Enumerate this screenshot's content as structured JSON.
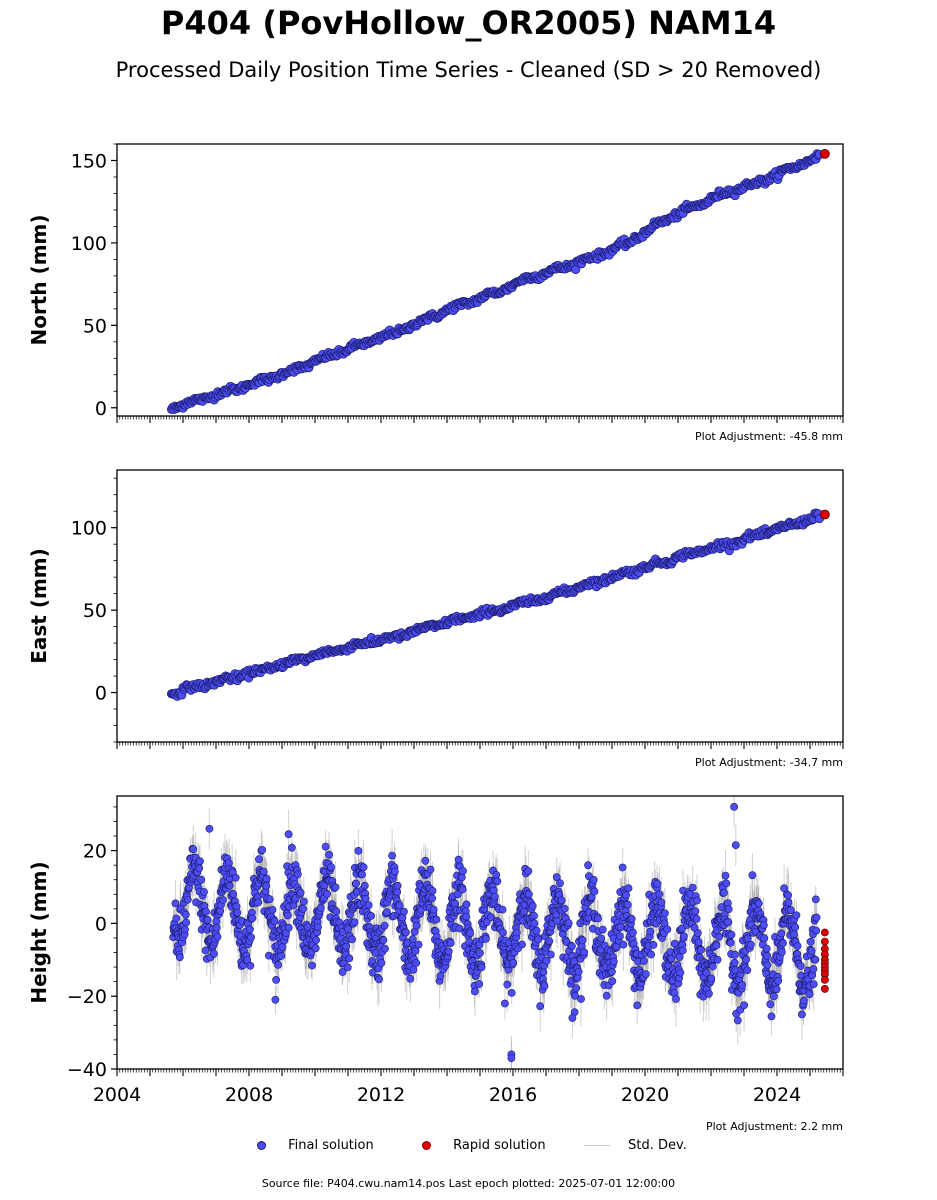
{
  "title": "P404 (PovHollow_OR2005) NAM14",
  "subtitle": "Processed Daily Position Time Series - Cleaned (SD > 20 Removed)",
  "footer": "Source file: P404.cwu.nam14.pos  Last epoch plotted: 2025-07-01 12:00:00",
  "legend": {
    "final": "Final solution",
    "rapid": "Rapid solution",
    "sd": "Std. Dev."
  },
  "colors": {
    "final": "#4d4df5",
    "final_edge": "#1a1a66",
    "rapid": "#e00000",
    "sd": "#c8c8c8"
  },
  "chart_data": [
    {
      "type": "scatter",
      "ylabel": "North (mm)",
      "xlim": [
        2004,
        2026
      ],
      "ylim": [
        -5,
        160
      ],
      "yticks": [
        0,
        50,
        100,
        150
      ],
      "adjustment": "Plot Adjustment: -45.8 mm",
      "series": [
        {
          "name": "Final solution",
          "x": [
            2005.7,
            2006.5,
            2007.5,
            2008.5,
            2009.5,
            2010.5,
            2011.5,
            2012.5,
            2013.5,
            2014.5,
            2015.5,
            2016.5,
            2017.5,
            2018.5,
            2019.5,
            2020.5,
            2021.5,
            2022.5,
            2023.5,
            2024.5,
            2025.2
          ],
          "y": [
            0,
            5,
            11,
            17,
            24,
            32,
            39,
            46,
            55,
            63,
            70,
            79,
            85,
            92,
            100,
            113,
            122,
            131,
            137,
            146,
            152
          ]
        },
        {
          "name": "Rapid solution",
          "x": [
            2025.45
          ],
          "y": [
            154
          ]
        }
      ]
    },
    {
      "type": "scatter",
      "ylabel": "East (mm)",
      "xlim": [
        2004,
        2026
      ],
      "ylim": [
        -30,
        135
      ],
      "yticks": [
        0,
        50,
        100
      ],
      "adjustment": "Plot Adjustment: -34.7 mm",
      "series": [
        {
          "name": "Final solution",
          "x": [
            2005.7,
            2006.5,
            2007.5,
            2008.5,
            2009.5,
            2010.5,
            2011.5,
            2012.5,
            2013.5,
            2014.5,
            2015.5,
            2016.5,
            2017.5,
            2018.5,
            2019.5,
            2020.5,
            2021.5,
            2022.5,
            2023.5,
            2024.5,
            2025.2
          ],
          "y": [
            0,
            4,
            9,
            14,
            20,
            25,
            30,
            34,
            40,
            45,
            50,
            55,
            61,
            67,
            73,
            79,
            85,
            90,
            96,
            102,
            107
          ]
        },
        {
          "name": "Rapid solution",
          "x": [
            2025.45
          ],
          "y": [
            108
          ]
        }
      ]
    },
    {
      "type": "scatter",
      "ylabel": "Height (mm)",
      "xlim": [
        2004,
        2026
      ],
      "ylim": [
        -40,
        35
      ],
      "yticks": [
        -40,
        -20,
        0,
        20
      ],
      "xticks": [
        2004,
        2008,
        2012,
        2016,
        2020,
        2024
      ],
      "adjustment": "Plot Adjustment: 2.2 mm",
      "series": [
        {
          "name": "Final solution",
          "seasonal_amplitude_mm": 10,
          "trend_start_mm": 5,
          "trend_end_mm": -8,
          "x_start": 2005.7,
          "x_end": 2025.2,
          "outliers": [
            {
              "x": 2022.7,
              "y": 32
            },
            {
              "x": 2022.75,
              "y": 21.5
            },
            {
              "x": 2015.95,
              "y": -36
            },
            {
              "x": 2015.95,
              "y": -37
            },
            {
              "x": 2017.8,
              "y": -26
            },
            {
              "x": 2009.2,
              "y": 24.5
            },
            {
              "x": 2006.8,
              "y": 26
            },
            {
              "x": 2008.8,
              "y": -21
            }
          ]
        },
        {
          "name": "Rapid solution",
          "x": [
            2025.45,
            2025.45,
            2025.45,
            2025.45,
            2025.45,
            2025.45,
            2025.45,
            2025.45,
            2025.45,
            2025.45,
            2025.45
          ],
          "y": [
            -2.5,
            -5,
            -7,
            -8.5,
            -10,
            -11,
            -12,
            -13,
            -14,
            -15.5,
            -18
          ]
        }
      ]
    }
  ]
}
